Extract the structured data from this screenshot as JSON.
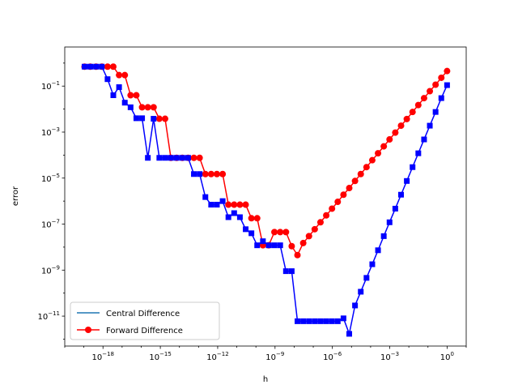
{
  "chart_data": {
    "type": "line",
    "title": "",
    "xlabel": "h",
    "ylabel": "error",
    "xscale": "log",
    "yscale": "log",
    "xlim": [
      1e-20,
      10
    ],
    "ylim": [
      5e-13,
      5
    ],
    "xticks": [
      {
        "base": "10",
        "exp": "−18",
        "value": 1e-18
      },
      {
        "base": "10",
        "exp": "−15",
        "value": 1e-15
      },
      {
        "base": "10",
        "exp": "−12",
        "value": 1e-12
      },
      {
        "base": "10",
        "exp": "−9",
        "value": 1e-09
      },
      {
        "base": "10",
        "exp": "−6",
        "value": 1e-06
      },
      {
        "base": "10",
        "exp": "−3",
        "value": 0.001
      },
      {
        "base": "10",
        "exp": "0",
        "value": 1
      }
    ],
    "yticks": [
      {
        "base": "10",
        "exp": "−11",
        "value": 1e-11
      },
      {
        "base": "10",
        "exp": "−9",
        "value": 1e-09
      },
      {
        "base": "10",
        "exp": "−7",
        "value": 1e-07
      },
      {
        "base": "10",
        "exp": "−5",
        "value": 1e-05
      },
      {
        "base": "10",
        "exp": "−3",
        "value": 0.001
      },
      {
        "base": "10",
        "exp": "−1",
        "value": 0.1
      }
    ],
    "grid": false,
    "legend": "lower-left",
    "x": [
      1.0,
      0.5,
      0.25,
      0.125,
      0.0625,
      0.03125,
      0.015625,
      0.0078125,
      0.00390625,
      0.001953125,
      0.0009765625,
      0.00048828125,
      0.000244140625,
      0.0001220703125,
      6.103515625e-05,
      3.0517578125e-05,
      1.52587890625e-05,
      7.62939453125e-06,
      3.814697265625e-06,
      1.9073486328125e-06,
      9.5367431640625e-07,
      4.76837158203125e-07,
      2.384185791015625e-07,
      1.1920928955078125e-07,
      5.960464477539063e-08,
      2.9802322387695312e-08,
      1.4901161193847656e-08,
      7.450580596923828e-09,
      3.725290298461914e-09,
      1.862645149230957e-09,
      9.313225746154785e-10,
      4.656612873077393e-10,
      2.3283064365386963e-10,
      1.1641532182693481e-10,
      5.820766091346741e-11,
      2.9103830456733704e-11,
      1.4551915228366852e-11,
      7.275957614183426e-12,
      3.637978807091713e-12,
      1.8189894035458565e-12,
      9.094947017729282e-13,
      4.547473508864641e-13,
      2.2737367544323206e-13,
      1.1368683772161603e-13,
      5.684341886080802e-14,
      2.842170943040401e-14,
      1.4210854715202004e-14,
      7.105427357601002e-15,
      3.552713678800501e-15,
      1.7763568394002505e-15,
      8.881784197001252e-16,
      4.440892098500626e-16,
      2.220446049250313e-16,
      1.1102230246251565e-16,
      5.551115123125783e-17,
      2.7755575615628914e-17,
      1.3877787807814457e-17,
      6.938893903907228e-18,
      3.469446951953614e-18,
      1.734723475976807e-18,
      8.673617379884035e-19,
      4.336808689942018e-19,
      2.168404344971009e-19,
      1.0842021724855044e-19
    ],
    "series": [
      {
        "name": "Central Difference",
        "color": "#0000ff",
        "marker": "square",
        "values": [
          0.11,
          0.03,
          0.0075,
          0.0019,
          0.00048,
          0.00012,
          3e-05,
          7.5e-06,
          1.9e-06,
          4.7e-07,
          1.2e-07,
          3e-08,
          7.3e-09,
          1.8e-09,
          4.6e-10,
          1.15e-10,
          2.9e-11,
          1.7e-12,
          8e-12,
          6e-12,
          6e-12,
          6e-12,
          6e-12,
          6e-12,
          6e-12,
          6e-12,
          6e-12,
          9e-10,
          9e-10,
          1.2e-08,
          1.2e-08,
          1.2e-08,
          1.8e-08,
          1.2e-08,
          4e-08,
          6e-08,
          2e-07,
          3e-07,
          2e-07,
          1e-06,
          7e-07,
          7e-07,
          1.5e-06,
          1.5e-05,
          1.5e-05,
          7.6e-05,
          7.6e-05,
          7.6e-05,
          7.6e-05,
          7.6e-05,
          7.6e-05,
          0.0038,
          7.6e-05,
          0.004,
          0.004,
          0.012,
          0.019,
          0.09,
          0.04,
          0.2,
          0.7,
          0.7,
          0.7,
          0.7
        ]
      },
      {
        "name": "Forward Difference",
        "color": "#ff0000",
        "marker": "circle",
        "values": [
          0.45,
          0.23,
          0.115,
          0.06,
          0.03,
          0.015,
          0.0075,
          0.0037,
          0.0019,
          0.00095,
          0.00048,
          0.00024,
          0.00012,
          6e-05,
          3e-05,
          1.5e-05,
          7.5e-06,
          3.7e-06,
          1.9e-06,
          9.3e-07,
          4.7e-07,
          2.4e-07,
          1.2e-07,
          6e-08,
          3e-08,
          1.5e-08,
          4.5e-09,
          1.1e-08,
          4.5e-08,
          4.5e-08,
          4.5e-08,
          1.2e-08,
          1.2e-08,
          1.8e-07,
          1.8e-07,
          7e-07,
          7e-07,
          7e-07,
          7e-07,
          1.5e-05,
          1.5e-05,
          1.5e-05,
          1.5e-05,
          7.6e-05,
          7.6e-05,
          7.6e-05,
          7.6e-05,
          7.6e-05,
          7.6e-05,
          0.0038,
          0.0038,
          0.012,
          0.012,
          0.012,
          0.04,
          0.04,
          0.3,
          0.3,
          0.7,
          0.7,
          0.7,
          0.7,
          0.7,
          0.7
        ]
      }
    ]
  }
}
